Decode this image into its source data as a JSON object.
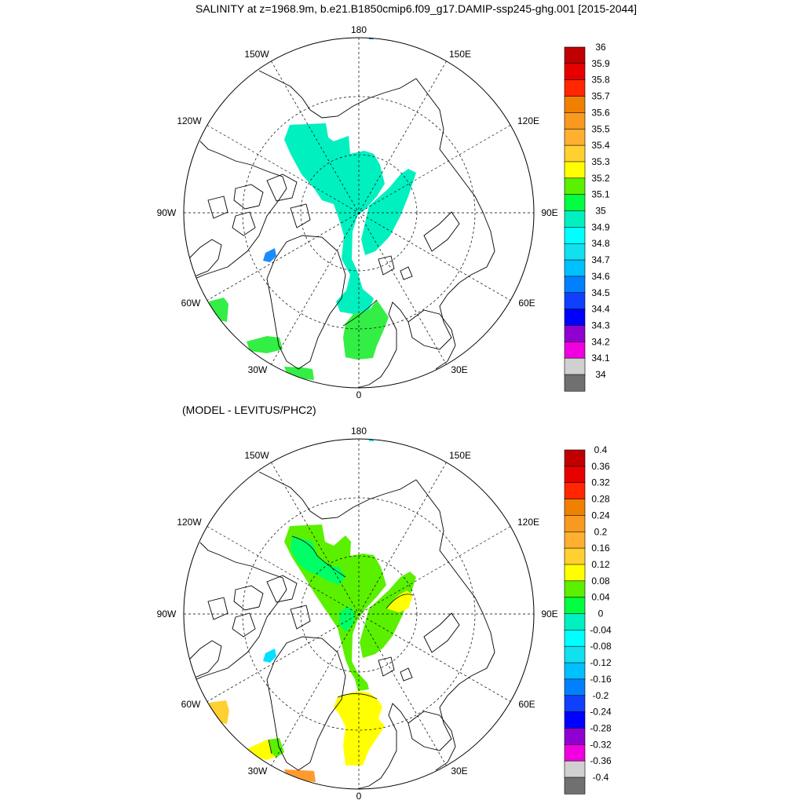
{
  "top_panel": {
    "title": "SALINITY at z=1968.9m, b.e21.B1850cmip6.f09_g17.DAMIP-ssp245-ghg.001 [2015-2044]",
    "lon_labels": [
      "180",
      "150E",
      "120E",
      "90E",
      "60E",
      "30E",
      "0",
      "30W",
      "60W",
      "90W",
      "120W",
      "150W"
    ],
    "colorbar_labels": [
      "36",
      "35.9",
      "35.8",
      "35.7",
      "35.6",
      "35.5",
      "35.4",
      "35.3",
      "35.2",
      "35.1",
      "35",
      "34.9",
      "34.8",
      "34.7",
      "34.6",
      "34.5",
      "34.4",
      "34.3",
      "34.2",
      "34.1",
      "34"
    ]
  },
  "bottom_panel": {
    "title": "(MODEL - LEVITUS/PHC2)",
    "lon_labels": [
      "180",
      "150E",
      "120E",
      "90E",
      "60E",
      "30E",
      "0",
      "30W",
      "60W",
      "90W",
      "120W",
      "150W"
    ],
    "colorbar_labels": [
      "0.4",
      "0.36",
      "0.32",
      "0.28",
      "0.24",
      "0.2",
      "0.16",
      "0.12",
      "0.08",
      "0.04",
      "0",
      "-0.04",
      "-0.08",
      "-0.12",
      "-0.16",
      "-0.2",
      "-0.24",
      "-0.28",
      "-0.32",
      "-0.36",
      "-0.4"
    ]
  },
  "colorbar_colors": [
    "#c00000",
    "#e60000",
    "#ff2600",
    "#f08000",
    "#f89a20",
    "#ffb030",
    "#ffd030",
    "#ffff00",
    "#5af000",
    "#00ff40",
    "#00f0c0",
    "#00ffff",
    "#10e0f0",
    "#00c0ff",
    "#0080ff",
    "#1040ff",
    "#0000ff",
    "#9000d0",
    "#f000e0",
    "#d0d0d0",
    "#707070"
  ],
  "field_colors": {
    "top_salinity_35": "#00f0c0",
    "top_salinity_35_1": "#00ff40",
    "top_salinity_34_6": "#0080ff",
    "top_salinity_35_2": "#33ff33",
    "bottom_diff_0_04": "#5af000",
    "bottom_diff_0_08": "#ffff00",
    "bottom_diff_0_12": "#ffd030",
    "bottom_diff_0_2": "#ff9a30",
    "bottom_diff_neg": "#00e0ff"
  }
}
